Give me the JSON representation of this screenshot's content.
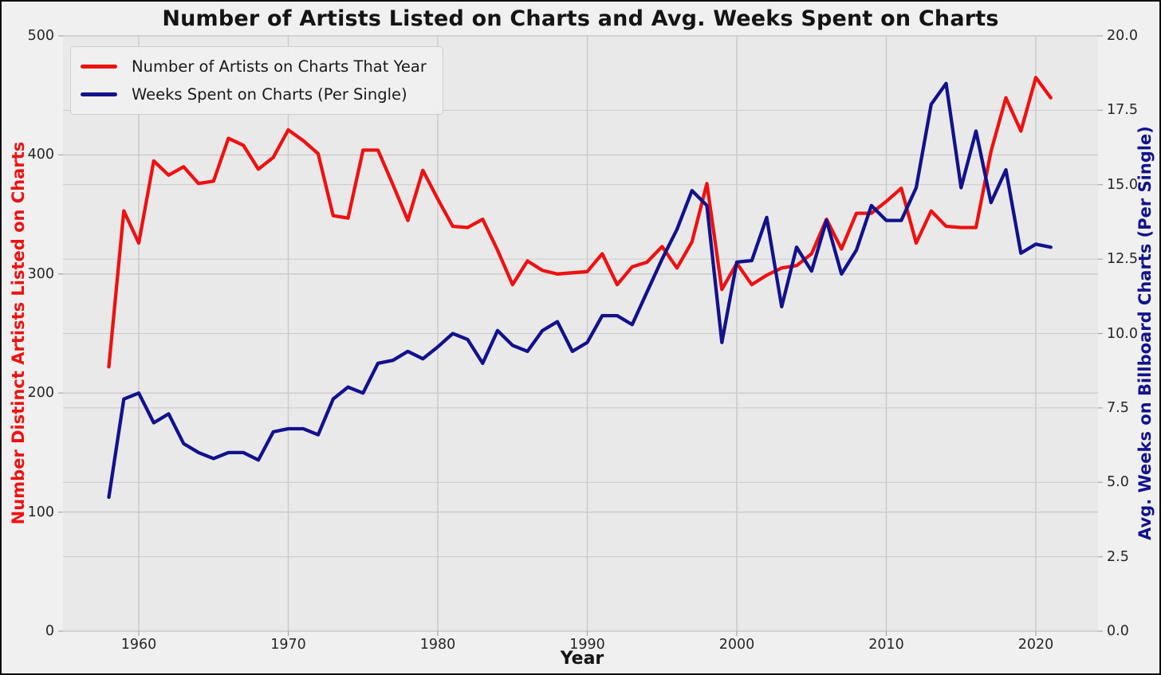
{
  "figure": {
    "title": "Number of Artists Listed on Charts and Avg. Weeks Spent on Charts"
  },
  "axes": {
    "x": {
      "label": "Year",
      "tick_values": [
        1960,
        1970,
        1980,
        1990,
        2000,
        2010,
        2020
      ],
      "tick_labels": [
        "1960",
        "1970",
        "1980",
        "1990",
        "2000",
        "2010",
        "2020"
      ]
    },
    "left": {
      "label": "Number Distinct Artists Listed on Charts",
      "color": "#ee1111",
      "tick_values": [
        0,
        100,
        200,
        300,
        400,
        500
      ],
      "tick_labels": [
        "0",
        "100",
        "200",
        "300",
        "400",
        "500"
      ],
      "range": [
        0,
        500
      ]
    },
    "right": {
      "label": "Avg. Weeks on Billboard Charts (Per Single)",
      "color": "#12128c",
      "tick_values": [
        0,
        2.5,
        5,
        7.5,
        10,
        12.5,
        15,
        17.5,
        20
      ],
      "tick_labels": [
        "0.0",
        "2.5",
        "5.0",
        "7.5",
        "10.0",
        "12.5",
        "15.0",
        "17.5",
        "20.0"
      ],
      "range": [
        0,
        20
      ]
    }
  },
  "colors": {
    "figure_bg": "#f0f0f0",
    "plot_bg": "#e9e9e9",
    "grid": "#c9c9c9",
    "tick_mark": "#a8a8a8",
    "tick_text": "#262626",
    "title_text": "#141414",
    "series_artists": "#ee1111",
    "series_weeks": "#12128c"
  },
  "chart_data": {
    "type": "line",
    "title": "Number of Artists Listed on Charts and Avg. Weeks Spent on Charts",
    "xlabel": "Year",
    "ylabel_left": "Number Distinct Artists Listed on Charts",
    "ylabel_right": "Avg. Weeks on Billboard Charts (Per Single)",
    "ylim_left": [
      0,
      500
    ],
    "ylim_right": [
      0,
      20
    ],
    "grid": true,
    "legend_position": "upper left",
    "x": [
      1958,
      1959,
      1960,
      1961,
      1962,
      1963,
      1964,
      1965,
      1966,
      1967,
      1968,
      1969,
      1970,
      1971,
      1972,
      1973,
      1974,
      1975,
      1976,
      1977,
      1978,
      1979,
      1980,
      1981,
      1982,
      1983,
      1984,
      1985,
      1986,
      1987,
      1988,
      1989,
      1990,
      1991,
      1992,
      1993,
      1994,
      1995,
      1996,
      1997,
      1998,
      1999,
      2000,
      2001,
      2002,
      2003,
      2004,
      2005,
      2006,
      2007,
      2008,
      2009,
      2010,
      2011,
      2012,
      2013,
      2014,
      2015,
      2016,
      2017,
      2018,
      2019,
      2020,
      2021
    ],
    "series": [
      {
        "name": "Number of Artists on Charts That Year",
        "axis": "left",
        "color": "#ee1111",
        "values": [
          222,
          353,
          326,
          395,
          383,
          390,
          376,
          378,
          414,
          408,
          388,
          398,
          421,
          412,
          401,
          349,
          347,
          404,
          404,
          375,
          345,
          387,
          363,
          340,
          339,
          346,
          320,
          291,
          311,
          303,
          300,
          301,
          302,
          317,
          291,
          306,
          310,
          323,
          305,
          327,
          376,
          287,
          309,
          291,
          299,
          305,
          307,
          317,
          346,
          321,
          351,
          351,
          361,
          372,
          326,
          353,
          340,
          339,
          339,
          403,
          448,
          420,
          465,
          448
        ]
      },
      {
        "name": "Weeks Spent on Charts (Per Single)",
        "axis": "right",
        "color": "#12128c",
        "values": [
          4.5,
          7.8,
          8.0,
          7.0,
          7.3,
          6.3,
          6.0,
          5.8,
          6.0,
          6.0,
          5.75,
          6.7,
          6.8,
          6.8,
          6.6,
          7.8,
          8.2,
          8.0,
          9.0,
          9.1,
          9.4,
          9.15,
          9.55,
          10.0,
          9.8,
          9.0,
          10.1,
          9.6,
          9.4,
          10.1,
          10.4,
          9.4,
          9.7,
          10.6,
          10.6,
          10.3,
          11.4,
          12.5,
          13.5,
          14.8,
          14.3,
          9.7,
          12.4,
          12.45,
          13.9,
          10.9,
          12.9,
          12.1,
          13.8,
          12.0,
          12.8,
          14.3,
          13.8,
          13.8,
          14.9,
          17.7,
          18.4,
          14.9,
          16.8,
          14.4,
          15.5,
          12.7,
          13.0,
          12.9
        ]
      }
    ]
  }
}
